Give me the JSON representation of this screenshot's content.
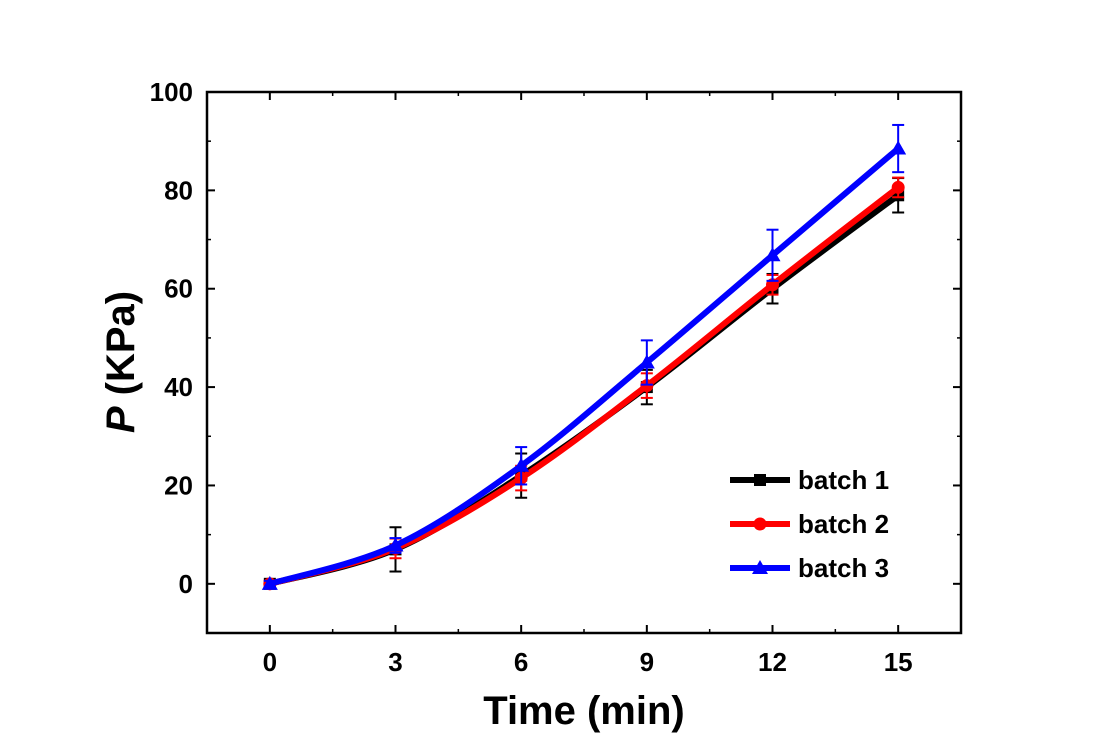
{
  "chart_data": {
    "type": "line",
    "xlabel": "Time (min)",
    "ylabel_symbol": "P",
    "ylabel_unit": " (KPa)",
    "x": [
      0,
      3,
      6,
      9,
      12,
      15
    ],
    "xlim": [
      -1.5,
      16.5
    ],
    "ylim": [
      -10,
      100
    ],
    "xticks": [
      0,
      3,
      6,
      9,
      12,
      15
    ],
    "yticks": [
      0,
      20,
      40,
      60,
      80,
      100
    ],
    "grid": false,
    "legend_position": "bottom-right",
    "series": [
      {
        "name": "batch 1",
        "color": "#000000",
        "marker": "square",
        "values": [
          0,
          7,
          22,
          40,
          60,
          79
        ],
        "errors": [
          0.6,
          4.5,
          4.5,
          3.5,
          3,
          3.5
        ]
      },
      {
        "name": "batch 2",
        "color": "#ff0000",
        "marker": "circle",
        "values": [
          0,
          7.2,
          21.5,
          40.3,
          60.8,
          80.6
        ],
        "errors": [
          0.6,
          2,
          2.5,
          2.5,
          2,
          2
        ]
      },
      {
        "name": "batch 3",
        "color": "#0000ff",
        "marker": "triangle",
        "values": [
          0,
          7.8,
          24,
          45,
          66.8,
          88.5
        ],
        "errors": [
          0.6,
          1.5,
          3.8,
          4.5,
          5.2,
          4.8
        ]
      }
    ]
  }
}
